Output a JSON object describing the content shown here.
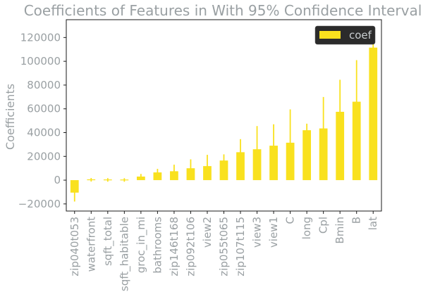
{
  "chart_data": {
    "type": "bar",
    "title": "Coefficients of Features in With 95% Confidence Interval",
    "xlabel": "",
    "ylabel": "Coefficients",
    "ylim": [
      -26000,
      135000
    ],
    "yticks": [
      -20000,
      0,
      20000,
      40000,
      60000,
      80000,
      100000,
      120000
    ],
    "ytick_labels": [
      "−20000",
      "0",
      "20000",
      "40000",
      "60000",
      "80000",
      "100000",
      "120000"
    ],
    "grid": false,
    "legend_position": "top-right",
    "categories": [
      "zip040t053",
      "waterfront",
      "sqft_total",
      "sqft_habitable",
      "groc_in_mi",
      "bathrooms",
      "zip146t168",
      "zip092t106",
      "view2",
      "zip055t065",
      "zip107t115",
      "view3",
      "view1",
      "C",
      "long",
      "Cpl",
      "Bmin",
      "B",
      "lat"
    ],
    "series": [
      {
        "name": "coef",
        "color": "#f9e11e",
        "values": [
          -10500,
          300,
          200,
          150,
          3000,
          6500,
          7500,
          10000,
          11800,
          16500,
          23500,
          26000,
          29000,
          31500,
          42000,
          43500,
          57500,
          66000,
          111500
        ],
        "error": [
          7500,
          1500,
          1500,
          1500,
          2200,
          3000,
          5500,
          7500,
          9500,
          5200,
          11000,
          19500,
          18000,
          28000,
          5500,
          26500,
          27000,
          35000,
          3000
        ]
      }
    ]
  },
  "colors": {
    "bar": "#f9e11e",
    "text": "#9aa0a3",
    "legend_bg": "#2b2b2b",
    "axis": "#1a1a1a"
  }
}
